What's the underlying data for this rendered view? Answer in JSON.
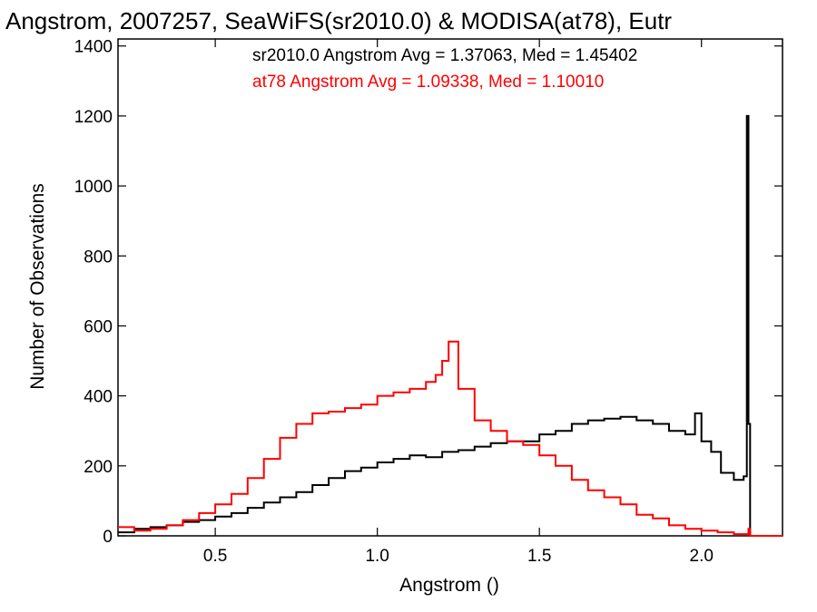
{
  "chart_data": {
    "type": "line",
    "title": "Angstrom, 2007257, SeaWiFS(sr2010.0) & MODISA(at78), Eutr",
    "xlabel": "Angstrom ()",
    "ylabel": "Number of Observations",
    "xlim": [
      0.2,
      2.25
    ],
    "ylim": [
      0,
      1420
    ],
    "x_ticks": [
      0.5,
      1.0,
      1.5,
      2.0
    ],
    "x_tick_labels": [
      "0.5",
      "1.0",
      "1.5",
      "2.0"
    ],
    "y_ticks": [
      0,
      200,
      400,
      600,
      800,
      1000,
      1200,
      1400
    ],
    "y_tick_labels": [
      "0",
      "200",
      "400",
      "600",
      "800",
      "1000",
      "1200",
      "1400"
    ],
    "grid": false,
    "step": true,
    "annotations": [
      {
        "text": "sr2010.0 Angstrom Avg = 1.37063, Med = 1.45402",
        "color": "#000000"
      },
      {
        "text": "at78 Angstrom Avg = 1.09338, Med = 1.10010",
        "color": "#ff0000"
      }
    ],
    "series": [
      {
        "name": "sr2010.0",
        "color": "#000000",
        "x": [
          0.2,
          0.25,
          0.3,
          0.35,
          0.4,
          0.45,
          0.5,
          0.55,
          0.6,
          0.65,
          0.7,
          0.75,
          0.8,
          0.85,
          0.9,
          0.95,
          1.0,
          1.05,
          1.1,
          1.15,
          1.2,
          1.25,
          1.3,
          1.35,
          1.4,
          1.45,
          1.5,
          1.55,
          1.6,
          1.65,
          1.7,
          1.75,
          1.8,
          1.85,
          1.9,
          1.95,
          1.98,
          2.0,
          2.03,
          2.06,
          2.1,
          2.13,
          2.14,
          2.145,
          2.15,
          2.155,
          2.16,
          2.25
        ],
        "y": [
          10,
          20,
          25,
          30,
          40,
          45,
          55,
          65,
          80,
          95,
          110,
          125,
          145,
          165,
          185,
          195,
          210,
          220,
          230,
          225,
          240,
          245,
          255,
          265,
          270,
          270,
          290,
          300,
          320,
          330,
          335,
          340,
          330,
          320,
          300,
          290,
          350,
          270,
          240,
          180,
          160,
          170,
          1200,
          320,
          0,
          0,
          0,
          0
        ]
      },
      {
        "name": "at78",
        "color": "#ff0000",
        "x": [
          0.2,
          0.25,
          0.3,
          0.35,
          0.4,
          0.45,
          0.5,
          0.55,
          0.6,
          0.65,
          0.7,
          0.75,
          0.8,
          0.85,
          0.9,
          0.95,
          1.0,
          1.05,
          1.1,
          1.15,
          1.18,
          1.2,
          1.22,
          1.25,
          1.3,
          1.35,
          1.4,
          1.45,
          1.5,
          1.55,
          1.6,
          1.65,
          1.7,
          1.75,
          1.8,
          1.85,
          1.9,
          1.95,
          2.0,
          2.05,
          2.1,
          2.13,
          2.145,
          2.15,
          2.2,
          2.25
        ],
        "y": [
          25,
          15,
          20,
          30,
          45,
          65,
          90,
          120,
          165,
          220,
          280,
          320,
          350,
          355,
          365,
          375,
          400,
          410,
          420,
          440,
          460,
          500,
          555,
          420,
          330,
          300,
          270,
          260,
          230,
          200,
          160,
          130,
          110,
          90,
          60,
          50,
          30,
          20,
          15,
          10,
          5,
          5,
          20,
          0,
          0,
          0
        ]
      }
    ]
  }
}
